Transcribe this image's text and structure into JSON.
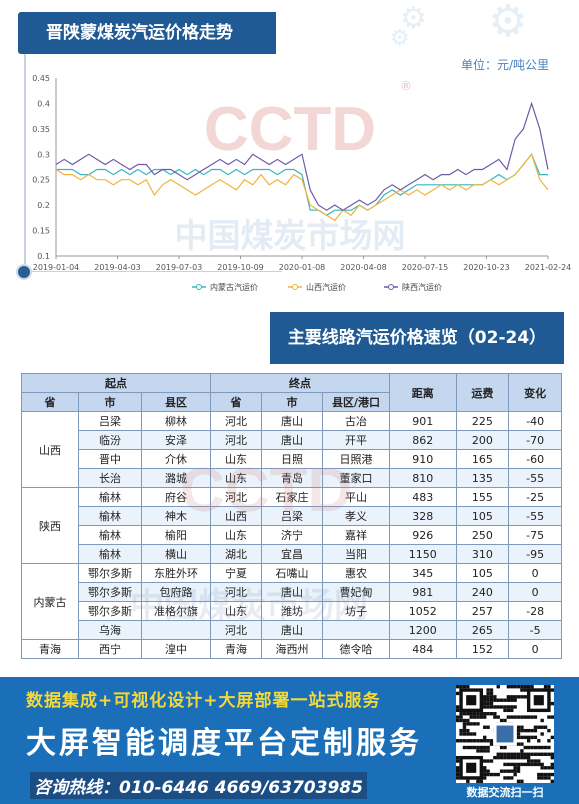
{
  "header": {
    "title": "晋陕蒙煤炭汽运价格走势",
    "unit_label": "单位：元/吨公里"
  },
  "watermark": {
    "logo": "CCTD",
    "text": "中国煤炭市场网",
    "registered": "®"
  },
  "chart_data": {
    "type": "line",
    "ylim": [
      0.1,
      0.45
    ],
    "yticks": [
      "0.1",
      "0.15",
      "0.2",
      "0.25",
      "0.3",
      "0.35",
      "0.4",
      "0.45"
    ],
    "xticks": [
      "2019-01-04",
      "2019-04-03",
      "2019-07-03",
      "2019-10-09",
      "2020-01-08",
      "2020-04-08",
      "2020-07-15",
      "2020-10-23",
      "2021-02-24"
    ],
    "grid": false,
    "legend_position": "bottom",
    "series": [
      {
        "name": "内蒙古汽运价",
        "color": "#35b5c4",
        "values": [
          0.27,
          0.27,
          0.27,
          0.26,
          0.26,
          0.27,
          0.27,
          0.26,
          0.27,
          0.26,
          0.27,
          0.26,
          0.27,
          0.27,
          0.26,
          0.27,
          0.26,
          0.27,
          0.26,
          0.27,
          0.27,
          0.26,
          0.27,
          0.26,
          0.27,
          0.27,
          0.27,
          0.26,
          0.27,
          0.27,
          0.26,
          0.19,
          0.19,
          0.18,
          0.19,
          0.19,
          0.19,
          0.2,
          0.19,
          0.2,
          0.22,
          0.23,
          0.22,
          0.23,
          0.24,
          0.24,
          0.24,
          0.24,
          0.24,
          0.24,
          0.24,
          0.24,
          0.24,
          0.25,
          0.26,
          0.25,
          0.26,
          0.28,
          0.3,
          0.26,
          0.26
        ]
      },
      {
        "name": "山西汽运价",
        "color": "#f0b43c",
        "values": [
          0.27,
          0.26,
          0.26,
          0.25,
          0.26,
          0.25,
          0.25,
          0.24,
          0.25,
          0.25,
          0.24,
          0.25,
          0.22,
          0.24,
          0.25,
          0.24,
          0.23,
          0.22,
          0.23,
          0.24,
          0.25,
          0.24,
          0.23,
          0.25,
          0.24,
          0.26,
          0.24,
          0.25,
          0.24,
          0.26,
          0.25,
          0.2,
          0.19,
          0.18,
          0.17,
          0.19,
          0.18,
          0.2,
          0.19,
          0.2,
          0.21,
          0.22,
          0.23,
          0.22,
          0.23,
          0.22,
          0.23,
          0.24,
          0.23,
          0.24,
          0.23,
          0.24,
          0.24,
          0.25,
          0.24,
          0.25,
          0.26,
          0.28,
          0.3,
          0.25,
          0.23
        ]
      },
      {
        "name": "陕西汽运价",
        "color": "#6e5aa8",
        "values": [
          0.28,
          0.29,
          0.28,
          0.29,
          0.3,
          0.29,
          0.28,
          0.29,
          0.28,
          0.27,
          0.28,
          0.28,
          0.26,
          0.27,
          0.27,
          0.26,
          0.25,
          0.26,
          0.27,
          0.28,
          0.29,
          0.28,
          0.29,
          0.28,
          0.3,
          0.29,
          0.28,
          0.29,
          0.28,
          0.29,
          0.3,
          0.23,
          0.2,
          0.19,
          0.2,
          0.19,
          0.2,
          0.21,
          0.2,
          0.21,
          0.23,
          0.24,
          0.23,
          0.24,
          0.25,
          0.26,
          0.25,
          0.26,
          0.26,
          0.27,
          0.26,
          0.27,
          0.27,
          0.28,
          0.29,
          0.27,
          0.33,
          0.35,
          0.4,
          0.35,
          0.27
        ]
      }
    ]
  },
  "section": {
    "title": "主要线路汽运价格速览（02-24）"
  },
  "table": {
    "group_headers": {
      "origin": "起点",
      "destination": "终点",
      "distance": "距离",
      "freight": "运费",
      "change": "变化"
    },
    "sub_headers": [
      "省",
      "市",
      "县区",
      "省",
      "市",
      "县区/港口"
    ],
    "groups": [
      {
        "province": "山西",
        "rows": [
          [
            "吕梁",
            "柳林",
            "河北",
            "唐山",
            "古冶",
            "901",
            "225",
            "-40"
          ],
          [
            "临汾",
            "安泽",
            "河北",
            "唐山",
            "开平",
            "862",
            "200",
            "-70"
          ],
          [
            "晋中",
            "介休",
            "山东",
            "日照",
            "日照港",
            "910",
            "165",
            "-60"
          ],
          [
            "长治",
            "潞城",
            "山东",
            "青岛",
            "董家口",
            "810",
            "135",
            "-55"
          ]
        ]
      },
      {
        "province": "陕西",
        "rows": [
          [
            "榆林",
            "府谷",
            "河北",
            "石家庄",
            "平山",
            "483",
            "155",
            "-25"
          ],
          [
            "榆林",
            "神木",
            "山西",
            "吕梁",
            "孝义",
            "328",
            "105",
            "-55"
          ],
          [
            "榆林",
            "榆阳",
            "山东",
            "济宁",
            "嘉祥",
            "926",
            "250",
            "-75"
          ],
          [
            "榆林",
            "横山",
            "湖北",
            "宜昌",
            "当阳",
            "1150",
            "310",
            "-95"
          ]
        ]
      },
      {
        "province": "内蒙古",
        "rows": [
          [
            "鄂尔多斯",
            "东胜外环",
            "宁夏",
            "石嘴山",
            "惠农",
            "345",
            "105",
            "0"
          ],
          [
            "鄂尔多斯",
            "包府路",
            "河北",
            "唐山",
            "曹妃甸",
            "981",
            "240",
            "0"
          ],
          [
            "鄂尔多斯",
            "准格尔旗",
            "山东",
            "潍坊",
            "坊子",
            "1052",
            "257",
            "-28"
          ],
          [
            "乌海",
            "",
            "河北",
            "唐山",
            "",
            "1200",
            "265",
            "-5"
          ]
        ]
      },
      {
        "province": "青海",
        "rows": [
          [
            "西宁",
            "湟中",
            "青海",
            "海西州",
            "德令哈",
            "484",
            "152",
            "0"
          ]
        ]
      }
    ]
  },
  "footer": {
    "line1": "数据集成+可视化设计+大屏部署一站式服务",
    "line2": "大屏智能调度平台定制服务",
    "line3": "咨询热线：010-6446 4669/63703985",
    "qr_caption": "数据交流扫一扫"
  }
}
